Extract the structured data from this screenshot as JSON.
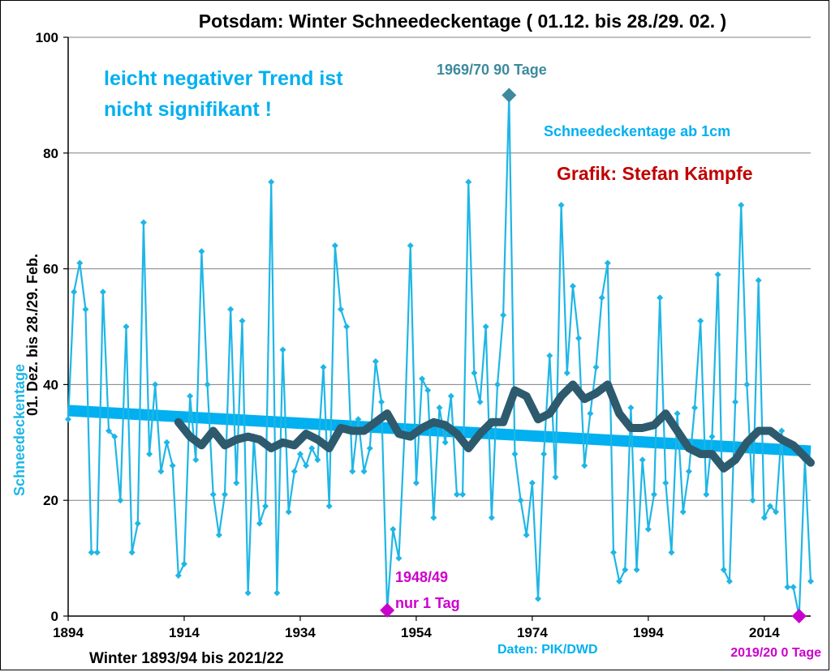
{
  "chart_data": {
    "type": "line",
    "title": "Potsdam: Winter Schneedeckentage ( 01.12. bis 28./29. 02. )",
    "ylabel_main": "Schneedeckentage",
    "ylabel_sub": "01. Dez. bis 28./29. Feb.",
    "xlabel": "Winter 1893/94 bis 2021/22",
    "xlim": [
      1894,
      2022
    ],
    "ylim": [
      0,
      100
    ],
    "xticks": [
      1894,
      1914,
      1934,
      1954,
      1974,
      1994,
      2014
    ],
    "yticks": [
      0,
      20,
      40,
      60,
      80,
      100
    ],
    "grid": true,
    "series": [
      {
        "name": "Schneedeckentage ab 1cm",
        "color": "#1fb6e6",
        "x_start": 1894,
        "values": [
          34,
          56,
          61,
          53,
          11,
          11,
          56,
          32,
          31,
          20,
          50,
          11,
          16,
          68,
          28,
          40,
          25,
          30,
          26,
          7,
          9,
          38,
          27,
          63,
          40,
          21,
          14,
          21,
          53,
          23,
          51,
          4,
          31,
          16,
          19,
          75,
          4,
          46,
          18,
          25,
          28,
          26,
          29,
          27,
          43,
          19,
          64,
          53,
          50,
          25,
          34,
          25,
          29,
          44,
          37,
          1,
          15,
          10,
          32,
          64,
          23,
          41,
          39,
          17,
          36,
          30,
          38,
          21,
          21,
          75,
          42,
          37,
          50,
          17,
          40,
          52,
          90,
          28,
          20,
          14,
          23,
          3,
          28,
          45,
          24,
          71,
          42,
          57,
          48,
          26,
          35,
          43,
          55,
          61,
          11,
          6,
          8,
          36,
          8,
          27,
          15,
          21,
          55,
          23,
          11,
          35,
          18,
          25,
          36,
          51,
          21,
          31,
          59,
          8,
          6,
          37,
          71,
          40,
          20,
          58,
          17,
          19,
          18,
          32,
          5,
          5,
          0,
          27,
          6
        ]
      },
      {
        "name": "",
        "color": "#2e5a6e",
        "x": [
          1913,
          1915,
          1917,
          1919,
          1921,
          1923,
          1925,
          1927,
          1929,
          1931,
          1933,
          1935,
          1937,
          1939,
          1941,
          1943,
          1945,
          1947,
          1949,
          1951,
          1953,
          1955,
          1957,
          1959,
          1961,
          1963,
          1965,
          1967,
          1969,
          1971,
          1973,
          1975,
          1977,
          1979,
          1981,
          1983,
          1985,
          1987,
          1989,
          1991,
          1993,
          1995,
          1997,
          1999,
          2001,
          2003,
          2005,
          2007,
          2009,
          2011,
          2013,
          2015,
          2017,
          2019,
          2021,
          2022
        ],
        "values": [
          33.5,
          31,
          29.5,
          32,
          29.5,
          30.5,
          31,
          30.5,
          29,
          30,
          29.5,
          31.5,
          30.5,
          29,
          32.5,
          32,
          32,
          33.5,
          35,
          31.5,
          31,
          32.5,
          33.5,
          33,
          31.5,
          29,
          31.5,
          33.5,
          33.5,
          39,
          38,
          34,
          35,
          38,
          40,
          37.5,
          38.5,
          40,
          35,
          32.5,
          32.5,
          33,
          35,
          32,
          29,
          28,
          28,
          25.5,
          27,
          30,
          32,
          32,
          30.5,
          29.5,
          27.5,
          26.5
        ]
      },
      {
        "name": "",
        "type": "trend",
        "color": "#00b0f0",
        "x": [
          1894,
          2022
        ],
        "values": [
          35.5,
          28.5
        ]
      }
    ],
    "highlights": [
      {
        "x": 1970,
        "y": 90,
        "color": "#3d8a9e",
        "label": "1969/70   90 Tage"
      },
      {
        "x": 1949,
        "y": 1,
        "color": "#cc00cc",
        "label1": "1948/49",
        "label2": "nur  1  Tag"
      },
      {
        "x": 2020,
        "y": 0,
        "color": "#cc00cc",
        "label": "2019/20 0 Tage"
      }
    ],
    "annotations": {
      "trend_line1": "leicht negativer Trend ist",
      "trend_line2": "nicht signifikant !",
      "legend_note": "Schneedeckentage  ab  1cm",
      "credit": "Grafik: Stefan Kämpfe",
      "source": "Daten: PIK/DWD"
    },
    "colors": {
      "series_text": "#1fb6e6",
      "annotation_text": "#00b0f0",
      "credit": "#c00000",
      "peak_label": "#3d8a9e",
      "minimum": "#cc00cc"
    }
  }
}
